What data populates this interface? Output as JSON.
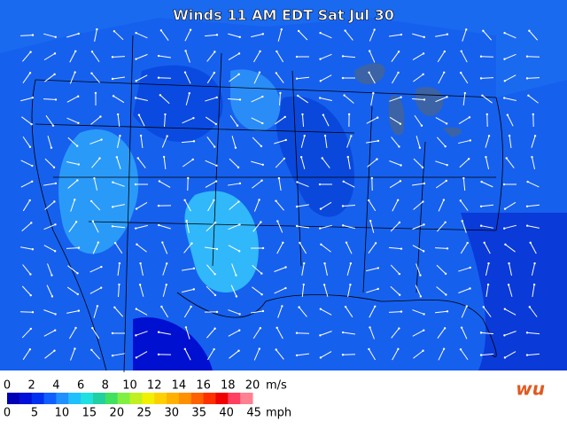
{
  "title": "Winds 11 AM EDT Sat Jul 30",
  "logo": "wu",
  "legend": {
    "ms_labels": [
      0,
      2,
      4,
      6,
      8,
      10,
      12,
      14,
      16,
      18,
      20
    ],
    "ms_unit": "m/s",
    "mph_labels": [
      0,
      5,
      10,
      15,
      20,
      25,
      30,
      35,
      40,
      45
    ],
    "mph_unit": "mph",
    "colors": [
      "#0000b4",
      "#0010d8",
      "#0030f0",
      "#1060ff",
      "#2090ff",
      "#20c0ff",
      "#20e0e0",
      "#20d0a0",
      "#40e060",
      "#80f040",
      "#c0f020",
      "#f0f000",
      "#ffd000",
      "#ffb000",
      "#ff9000",
      "#ff6000",
      "#ff3000",
      "#f00000",
      "#ff4060",
      "#ff8090"
    ]
  }
}
